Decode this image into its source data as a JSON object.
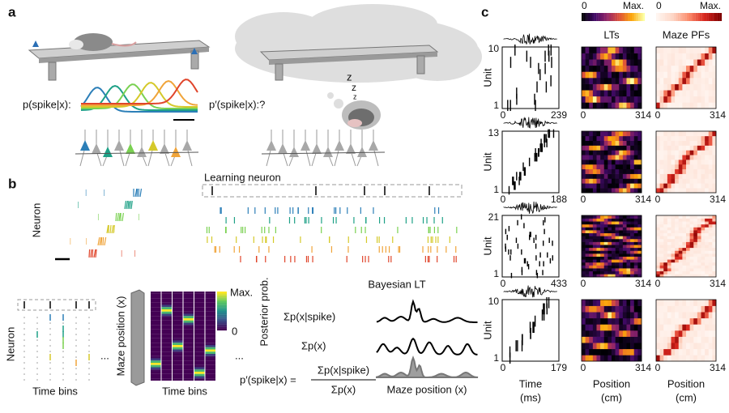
{
  "panel_a": {
    "label": "a",
    "encoding_label": "p(spike|x):",
    "sleep_label": "p′(spike|x):?",
    "sleep_marks": [
      "z",
      "z",
      "z"
    ]
  },
  "panel_b": {
    "label": "b",
    "neuron_label": "Neuron",
    "learning_neuron": "Learning neuron",
    "grid_neuron_label": "Neuron",
    "grid_time_label": "Time bins",
    "ellipsis_1": "...",
    "maze_position_label": "Maze position (x)",
    "colorbar_max": "Max.",
    "colorbar_min": "0",
    "colorbar_title": "Posterior prob.",
    "heatmap_time_label": "Time bins",
    "ellipsis_2": "...",
    "bayes_title": "Bayesian LT",
    "sum_posterior": "Σp(x|spike)",
    "sum_prior": "Σp(x)",
    "formula_lhs": "p′(spike|x) =",
    "formula_numerator": "Σp(x|spike)",
    "formula_denominator": "Σp(x)",
    "curve_axis_label": "Maze position (x)"
  },
  "panel_c": {
    "label": "c",
    "lt_colorbar": {
      "min": "0",
      "max": "Max."
    },
    "pf_colorbar": {
      "min": "0",
      "max": "Max."
    },
    "lt_title": "LTs",
    "pf_title": "Maze PFs",
    "unit_label": "Unit",
    "rows": [
      {
        "unit_max": 10,
        "unit_min": 1,
        "time_min": 0,
        "time_max": 239,
        "pos_min": 0,
        "pos_max": 314
      },
      {
        "unit_max": 13,
        "unit_min": 1,
        "time_min": 0,
        "time_max": 188,
        "pos_min": 0,
        "pos_max": 314
      },
      {
        "unit_max": 21,
        "unit_min": 1,
        "time_min": 0,
        "time_max": 433,
        "pos_min": 0,
        "pos_max": 314
      },
      {
        "unit_max": 10,
        "unit_min": 1,
        "time_min": 0,
        "time_max": 179,
        "pos_min": 0,
        "pos_max": 314
      }
    ],
    "x_labels": [
      {
        "name": "Time",
        "unit": "(ms)"
      },
      {
        "name": "Position",
        "unit": "(cm)"
      },
      {
        "name": "Position",
        "unit": "(cm)"
      }
    ]
  }
}
